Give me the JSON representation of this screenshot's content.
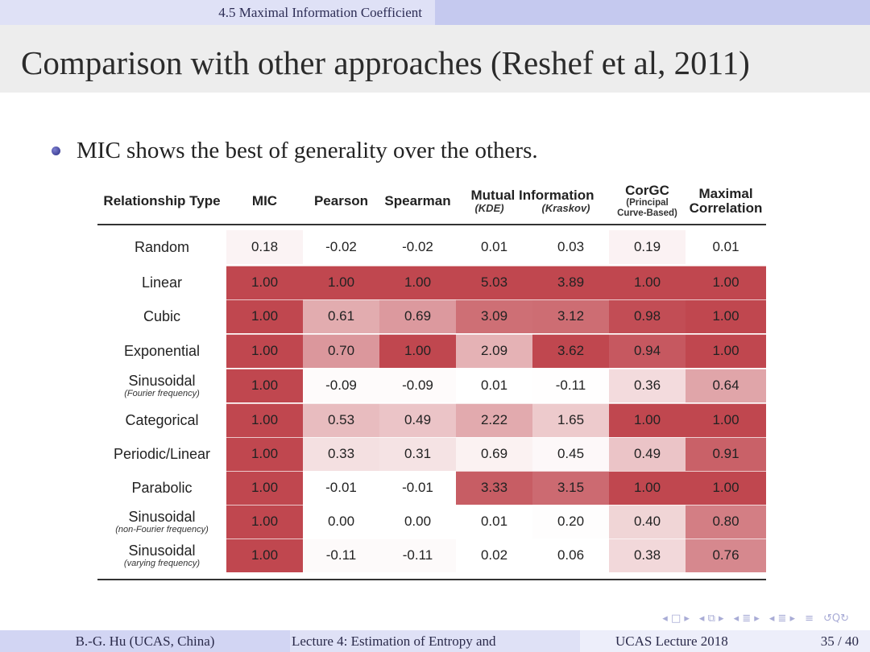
{
  "header": {
    "section": "4.5 Maximal Information Coefficient",
    "title": "Comparison with other approaches (Reshef et al, 2011)"
  },
  "bullet": {
    "text": "MIC shows the best of generality over the others."
  },
  "table": {
    "headers": {
      "relationship": "Relationship Type",
      "mic": "MIC",
      "pearson": "Pearson",
      "spearman": "Spearman",
      "mutual_info": "Mutual Information",
      "kde": "(KDE)",
      "kraskov": "(Kraskov)",
      "corgc": "CorGC",
      "corgc_sub1": "(Principal",
      "corgc_sub2": "Curve-Based)",
      "maxcorr1": "Maximal",
      "maxcorr2": "Correlation"
    },
    "rows": [
      {
        "label": "Random",
        "sub": "",
        "values": [
          "0.18",
          "-0.02",
          "-0.02",
          "0.01",
          "0.03",
          "0.19",
          "0.01"
        ]
      },
      {
        "label": "Linear",
        "sub": "",
        "values": [
          "1.00",
          "1.00",
          "1.00",
          "5.03",
          "3.89",
          "1.00",
          "1.00"
        ]
      },
      {
        "label": "Cubic",
        "sub": "",
        "values": [
          "1.00",
          "0.61",
          "0.69",
          "3.09",
          "3.12",
          "0.98",
          "1.00"
        ]
      },
      {
        "label": "Exponential",
        "sub": "",
        "values": [
          "1.00",
          "0.70",
          "1.00",
          "2.09",
          "3.62",
          "0.94",
          "1.00"
        ]
      },
      {
        "label": "Sinusoidal",
        "sub": "(Fourier frequency)",
        "values": [
          "1.00",
          "-0.09",
          "-0.09",
          "0.01",
          "-0.11",
          "0.36",
          "0.64"
        ]
      },
      {
        "label": "Categorical",
        "sub": "",
        "values": [
          "1.00",
          "0.53",
          "0.49",
          "2.22",
          "1.65",
          "1.00",
          "1.00"
        ]
      },
      {
        "label": "Periodic/Linear",
        "sub": "",
        "values": [
          "1.00",
          "0.33",
          "0.31",
          "0.69",
          "0.45",
          "0.49",
          "0.91"
        ]
      },
      {
        "label": "Parabolic",
        "sub": "",
        "values": [
          "1.00",
          "-0.01",
          "-0.01",
          "3.33",
          "3.15",
          "1.00",
          "1.00"
        ]
      },
      {
        "label": "Sinusoidal",
        "sub": "(non-Fourier frequency)",
        "values": [
          "1.00",
          "0.00",
          "0.00",
          "0.01",
          "0.20",
          "0.40",
          "0.80"
        ]
      },
      {
        "label": "Sinusoidal",
        "sub": "(varying frequency)",
        "values": [
          "1.00",
          "-0.11",
          "-0.11",
          "0.02",
          "0.06",
          "0.38",
          "0.76"
        ]
      }
    ],
    "heat_color": "#c0474f"
  },
  "footer": {
    "author": "B.-G. Hu (UCAS, China)",
    "lecture": "Lecture 4: Estimation of Entropy and",
    "institution": "UCAS Lecture 2018",
    "page": "35 / 40"
  },
  "nav": {
    "frame_prev": "◂",
    "frame_icon": "□",
    "frame_next": "▸",
    "sub_prev": "◂",
    "sub_icon": "⧉",
    "sub_next": "▸",
    "sec_prev": "◂",
    "sec_icon": "≣",
    "sec_next": "▸",
    "subsec_prev": "◂",
    "subsec_icon": "≣",
    "subsec_next": "▸",
    "align_icon": "≡",
    "search_icon": "↺Q↻"
  }
}
